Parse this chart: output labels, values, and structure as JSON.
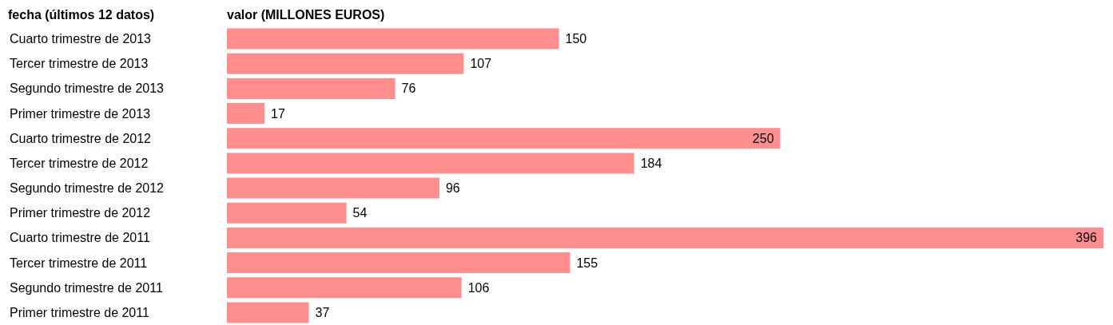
{
  "chart_data": {
    "type": "bar",
    "orientation": "horizontal",
    "ylabel": "fecha (últimos 12 datos)",
    "xlabel": "valor (MILLONES EUROS)",
    "categories": [
      "Cuarto trimestre de 2013",
      "Tercer trimestre de 2013",
      "Segundo trimestre de 2013",
      "Primer trimestre de 2013",
      "Cuarto trimestre de 2012",
      "Tercer trimestre de 2012",
      "Segundo trimestre de 2012",
      "Primer trimestre de 2012",
      "Cuarto trimestre de 2011",
      "Tercer trimestre de 2011",
      "Segundo trimestre de 2011",
      "Primer trimestre de 2011"
    ],
    "values": [
      150,
      107,
      76,
      17,
      250,
      184,
      96,
      54,
      396,
      155,
      106,
      37
    ],
    "color": "#ff8f8f",
    "data_labels": true
  }
}
